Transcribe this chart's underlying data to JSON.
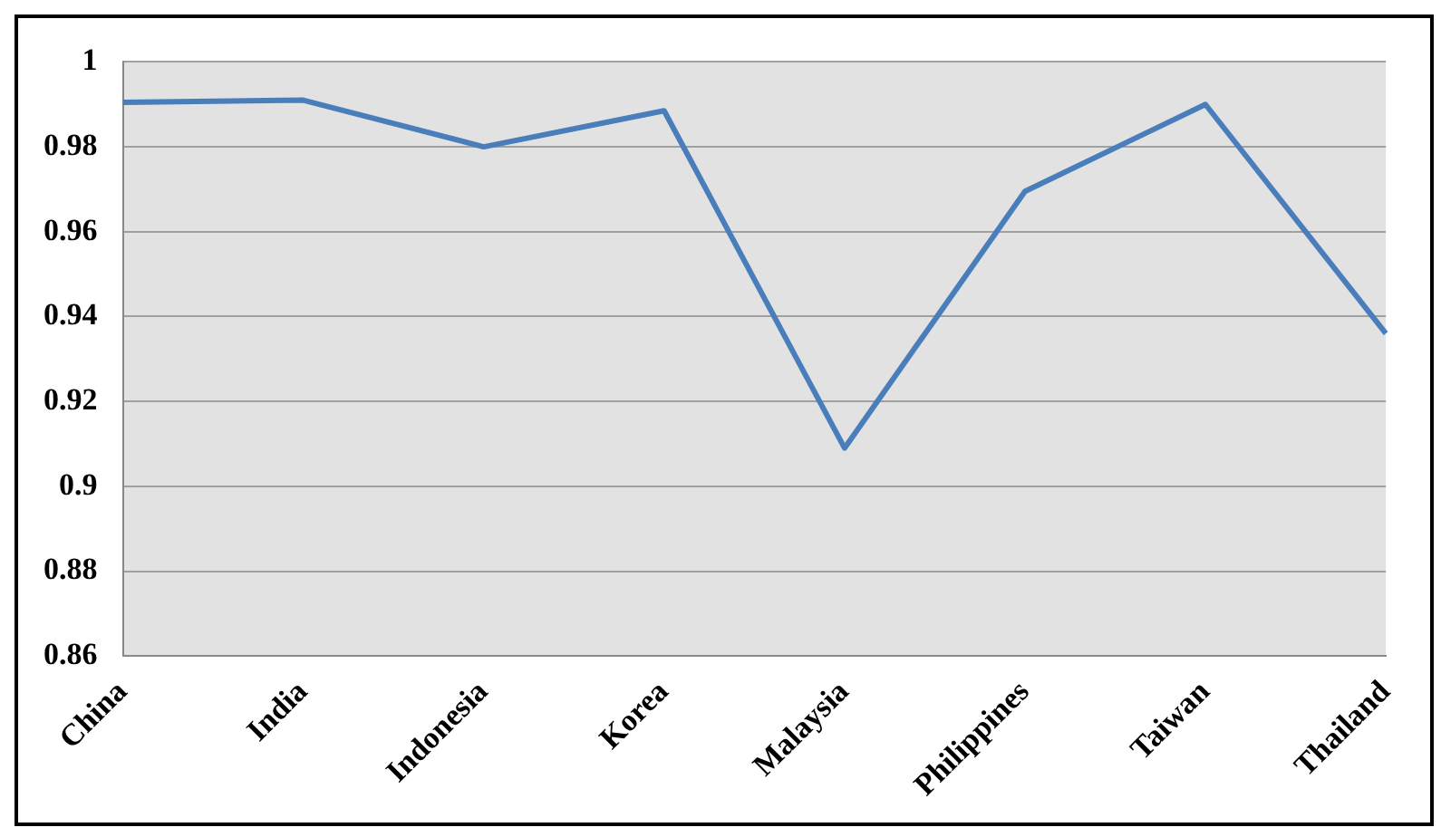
{
  "chart_data": {
    "type": "line",
    "categories": [
      "China",
      "India",
      "Indonesia",
      "Korea",
      "Malaysia",
      "Philippines",
      "Taiwan",
      "Thailand"
    ],
    "series": [
      {
        "color": "#4a7ebb",
        "values": [
          0.9905,
          0.991,
          0.98,
          0.9885,
          0.909,
          0.9695,
          0.99,
          0.936
        ]
      }
    ],
    "ylim": [
      0.86,
      1
    ],
    "yticks": [
      {
        "value": 0.86,
        "label": "0.86"
      },
      {
        "value": 0.88,
        "label": "0.88"
      },
      {
        "value": 0.9,
        "label": "0.9"
      },
      {
        "value": 0.92,
        "label": "0.92"
      },
      {
        "value": 0.94,
        "label": "0.94"
      },
      {
        "value": 0.96,
        "label": "0.96"
      },
      {
        "value": 0.98,
        "label": "0.98"
      },
      {
        "value": 1,
        "label": "1"
      }
    ],
    "grid": "y",
    "legend": false,
    "marker": "none",
    "line_style": "solid"
  }
}
